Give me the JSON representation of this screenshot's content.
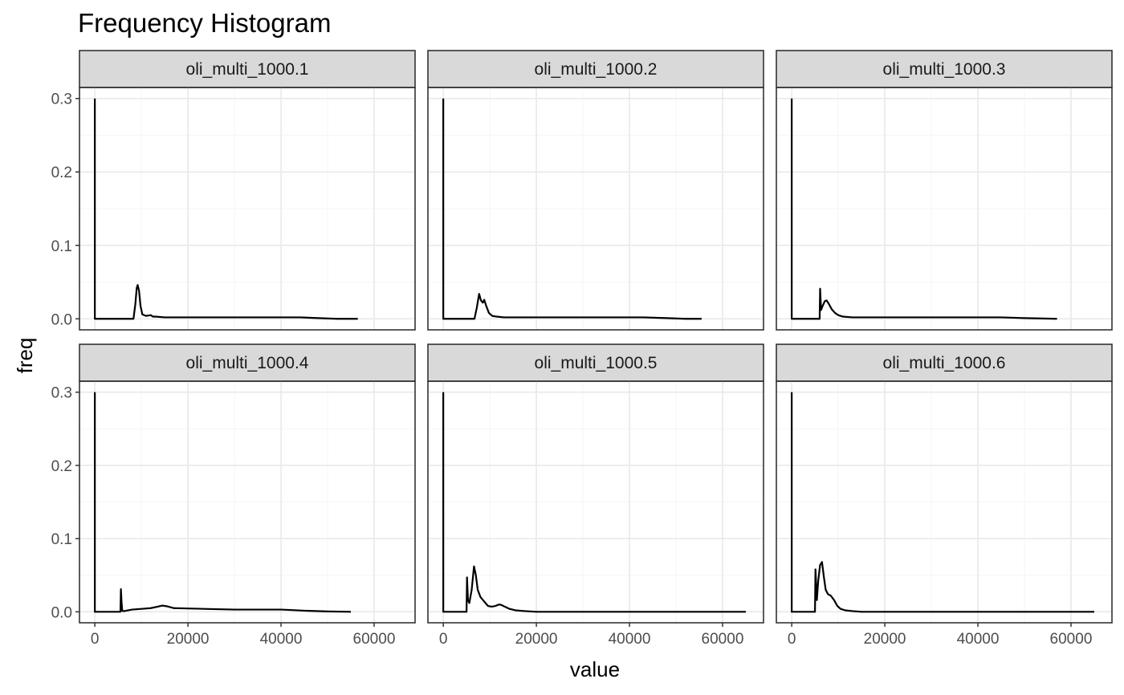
{
  "chart_data": {
    "type": "line",
    "title": "Frequency Histogram",
    "xlabel": "value",
    "ylabel": "freq",
    "xlim": [
      -3300,
      68800
    ],
    "ylim": [
      -0.015,
      0.315
    ],
    "x_ticks": [
      0,
      20000,
      40000,
      60000
    ],
    "x_tick_labels": [
      "0",
      "20000",
      "40000",
      "60000"
    ],
    "y_ticks": [
      0,
      0.1,
      0.2,
      0.3
    ],
    "y_tick_labels": [
      "0.0",
      "0.1",
      "0.2",
      "0.3"
    ],
    "grid": true,
    "legend": "none",
    "colors": {
      "line": "#000000",
      "strip_fill": "#d9d9d9",
      "panel_border": "#333333",
      "grid_major": "#ebebeb",
      "grid_minor": "#f5f5f5"
    },
    "panels": [
      {
        "name": "oli_multi_1000.1",
        "x": [
          0,
          0,
          1,
          8300,
          8700,
          9000,
          9200,
          9500,
          9800,
          10200,
          11000,
          12000,
          12500,
          13000,
          15000,
          20000,
          30000,
          40000,
          44000,
          48000,
          52000,
          56500
        ],
        "y": [
          0.3,
          0.3,
          0.0,
          0.0,
          0.02,
          0.042,
          0.046,
          0.038,
          0.018,
          0.006,
          0.004,
          0.005,
          0.003,
          0.003,
          0.002,
          0.002,
          0.002,
          0.002,
          0.002,
          0.001,
          0.0,
          0.0
        ]
      },
      {
        "name": "oli_multi_1000.2",
        "x": [
          0,
          0,
          1,
          6700,
          7200,
          7700,
          8100,
          8500,
          8800,
          9200,
          9800,
          10500,
          11500,
          13000,
          15000,
          20000,
          30000,
          43000,
          48000,
          52000,
          55500
        ],
        "y": [
          0.3,
          0.3,
          0.0,
          0.0,
          0.015,
          0.034,
          0.025,
          0.022,
          0.026,
          0.018,
          0.008,
          0.004,
          0.003,
          0.002,
          0.002,
          0.002,
          0.002,
          0.002,
          0.001,
          0.0,
          0.0
        ]
      },
      {
        "name": "oli_multi_1000.3",
        "x": [
          0,
          0,
          1,
          5999,
          6100,
          6300,
          6600,
          7100,
          7500,
          8000,
          8600,
          9300,
          10000,
          11000,
          13000,
          16000,
          20000,
          30000,
          40000,
          45000,
          50000,
          57000
        ],
        "y": [
          0.3,
          0.3,
          0.0,
          0.0,
          0.041,
          0.012,
          0.017,
          0.024,
          0.025,
          0.02,
          0.013,
          0.008,
          0.005,
          0.003,
          0.002,
          0.002,
          0.002,
          0.002,
          0.002,
          0.002,
          0.001,
          0.0
        ]
      },
      {
        "name": "oli_multi_1000.4",
        "x": [
          0,
          0,
          1,
          5499,
          5600,
          5750,
          5900,
          6300,
          8000,
          10000,
          12000,
          13500,
          14500,
          15500,
          17000,
          20000,
          30000,
          40000,
          42000,
          45000,
          50000,
          55000
        ],
        "y": [
          0.3,
          0.3,
          0.0,
          0.0,
          0.031,
          0.012,
          0.001,
          0.001,
          0.003,
          0.004,
          0.005,
          0.007,
          0.0085,
          0.0075,
          0.005,
          0.0045,
          0.003,
          0.003,
          0.0025,
          0.0015,
          0.0005,
          0.0
        ]
      },
      {
        "name": "oli_multi_1000.5",
        "x": [
          0,
          0,
          1,
          4999,
          5100,
          5300,
          5600,
          6100,
          6600,
          7000,
          7400,
          8000,
          8800,
          9600,
          10400,
          11200,
          12000,
          12600,
          13200,
          14200,
          15500,
          17500,
          20000,
          30000,
          40000,
          65000
        ],
        "y": [
          0.3,
          0.3,
          0.0,
          0.0,
          0.047,
          0.016,
          0.012,
          0.03,
          0.062,
          0.05,
          0.03,
          0.02,
          0.014,
          0.008,
          0.007,
          0.008,
          0.01,
          0.009,
          0.007,
          0.004,
          0.002,
          0.001,
          0.0,
          0.0,
          0.0,
          0.0
        ]
      },
      {
        "name": "oli_multi_1000.6",
        "x": [
          0,
          0,
          1,
          4999,
          5100,
          5400,
          5700,
          6100,
          6500,
          6900,
          7300,
          7800,
          8400,
          9100,
          9800,
          10500,
          11500,
          13000,
          15000,
          20000,
          30000,
          65000
        ],
        "y": [
          0.3,
          0.3,
          0.0,
          0.0,
          0.058,
          0.016,
          0.043,
          0.064,
          0.068,
          0.048,
          0.03,
          0.024,
          0.022,
          0.016,
          0.008,
          0.004,
          0.002,
          0.001,
          0.0,
          0.0,
          0.0,
          0.0
        ]
      }
    ]
  }
}
